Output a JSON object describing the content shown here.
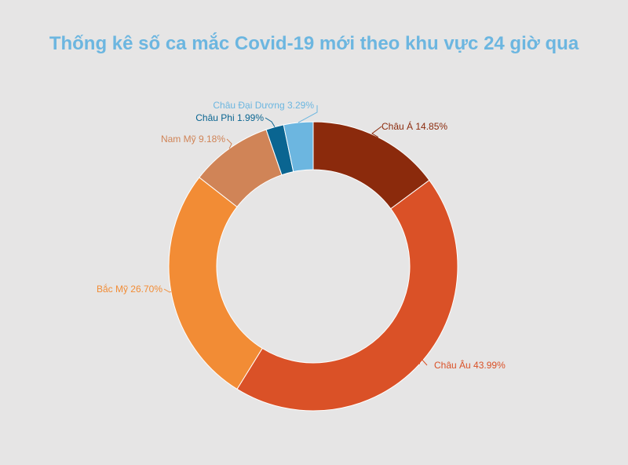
{
  "chart_data": {
    "type": "pie",
    "title": "Thống kê số ca mắc Covid-19 mới theo khu vực 24 giờ qua",
    "donut": true,
    "slices": [
      {
        "label": "Châu Á",
        "value": 14.85,
        "display": "Châu Á 14.85%",
        "color": "#8b2a0c"
      },
      {
        "label": "Châu Âu",
        "value": 43.99,
        "display": "Châu Âu 43.99%",
        "color": "#da5127"
      },
      {
        "label": "Bắc Mỹ",
        "value": 26.7,
        "display": "Bắc Mỹ 26.70%",
        "color": "#f28c35"
      },
      {
        "label": "Nam Mỹ",
        "value": 9.18,
        "display": "Nam Mỹ 9.18%",
        "color": "#d08457"
      },
      {
        "label": "Châu Phi",
        "value": 1.99,
        "display": "Châu Phi  1.99%",
        "color": "#0a6591"
      },
      {
        "label": "Châu Đại Dương",
        "value": 3.29,
        "display": "Châu Đại Dương 3.29%",
        "color": "#6cb6e0"
      }
    ]
  }
}
